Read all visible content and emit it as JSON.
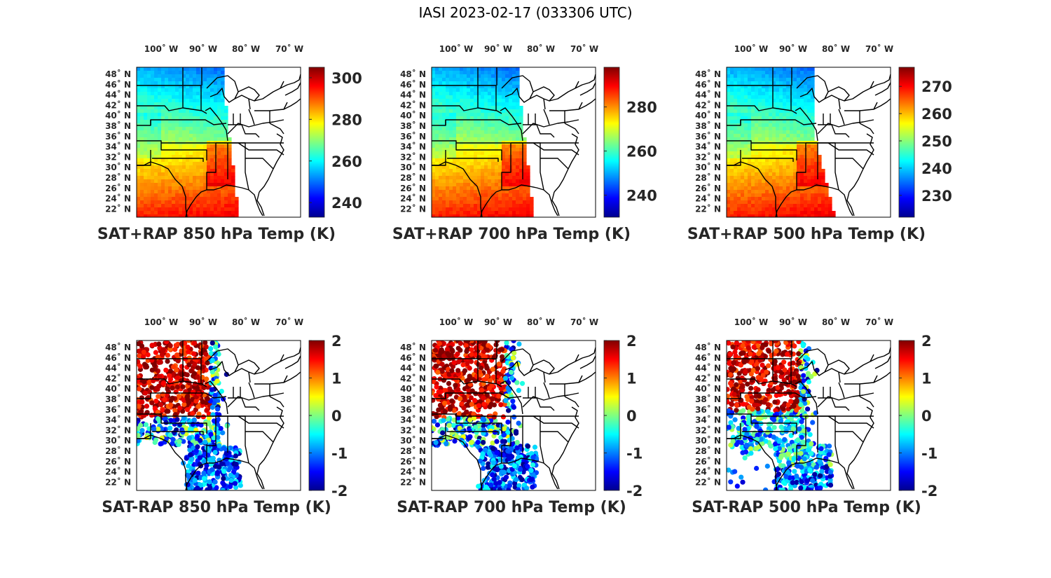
{
  "title": "IASI 2023-02-17 (033306 UTC)",
  "lon_labels": [
    "100˚ W",
    "90˚ W",
    "80˚ W",
    "70˚ W"
  ],
  "lat_labels": [
    "48˚ N",
    "46˚ N",
    "44˚ N",
    "42˚ N",
    "40˚ N",
    "38˚ N",
    "36˚ N",
    "34˚ N",
    "32˚ N",
    "30˚ N",
    "28˚ N",
    "26˚ N",
    "24˚ N",
    "22˚ N"
  ],
  "colormap": "jet",
  "panels": [
    {
      "title": "SAT+RAP 850 hPa Temp (K)",
      "kind": "total",
      "clim": [
        233,
        305
      ],
      "ticks": [
        "240",
        "260",
        "280",
        "300"
      ],
      "tick_values": [
        240,
        260,
        280,
        300
      ]
    },
    {
      "title": "SAT+RAP 700 hPa Temp (K)",
      "kind": "total",
      "clim": [
        230,
        298
      ],
      "ticks": [
        "240",
        "260",
        "280"
      ],
      "tick_values": [
        240,
        260,
        280
      ]
    },
    {
      "title": "SAT+RAP 500 hPa Temp (K)",
      "kind": "total",
      "clim": [
        222,
        277
      ],
      "ticks": [
        "230",
        "240",
        "250",
        "260",
        "270"
      ],
      "tick_values": [
        230,
        240,
        250,
        260,
        270
      ]
    },
    {
      "title": "SAT-RAP 850 hPa Temp (K)",
      "kind": "diff",
      "clim": [
        -2,
        2
      ],
      "ticks": [
        "-2",
        "-1",
        "0",
        "1",
        "2"
      ],
      "tick_values": [
        -2,
        -1,
        0,
        1,
        2
      ]
    },
    {
      "title": "SAT-RAP 700 hPa Temp (K)",
      "kind": "diff",
      "clim": [
        -2,
        2
      ],
      "ticks": [
        "-2",
        "-1",
        "0",
        "1",
        "2"
      ],
      "tick_values": [
        -2,
        -1,
        0,
        1,
        2
      ]
    },
    {
      "title": "SAT-RAP 500 hPa Temp (K)",
      "kind": "diff",
      "clim": [
        -2,
        2
      ],
      "ticks": [
        "-2",
        "-1",
        "0",
        "1",
        "2"
      ],
      "tick_values": [
        -2,
        -1,
        0,
        1,
        2
      ]
    }
  ]
}
